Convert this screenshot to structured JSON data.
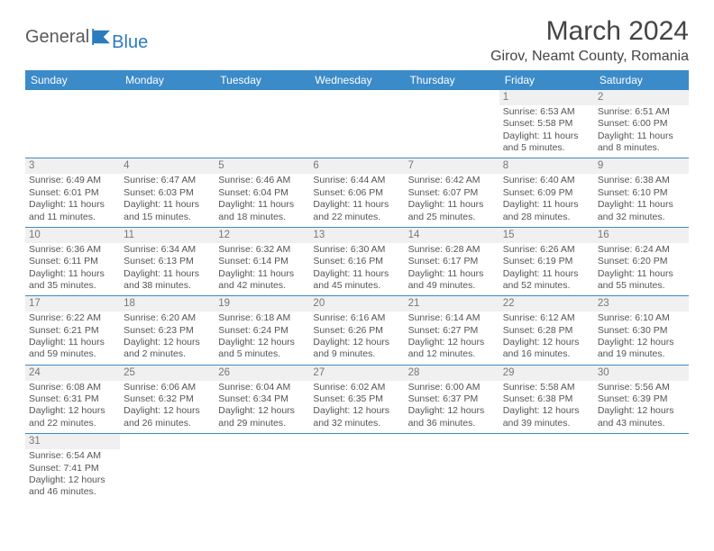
{
  "logo": {
    "text1": "General",
    "text2": "Blue"
  },
  "title": "March 2024",
  "location": "Girov, Neamt County, Romania",
  "colors": {
    "header_bg": "#3b8bc9",
    "header_fg": "#ffffff",
    "daynum_bg": "#f0f0f0",
    "text": "#555555",
    "rule": "#3b8bc9"
  },
  "day_headers": [
    "Sunday",
    "Monday",
    "Tuesday",
    "Wednesday",
    "Thursday",
    "Friday",
    "Saturday"
  ],
  "weeks": [
    [
      null,
      null,
      null,
      null,
      null,
      {
        "n": "1",
        "sr": "6:53 AM",
        "ss": "5:58 PM",
        "dl": "11 hours and 5 minutes."
      },
      {
        "n": "2",
        "sr": "6:51 AM",
        "ss": "6:00 PM",
        "dl": "11 hours and 8 minutes."
      }
    ],
    [
      {
        "n": "3",
        "sr": "6:49 AM",
        "ss": "6:01 PM",
        "dl": "11 hours and 11 minutes."
      },
      {
        "n": "4",
        "sr": "6:47 AM",
        "ss": "6:03 PM",
        "dl": "11 hours and 15 minutes."
      },
      {
        "n": "5",
        "sr": "6:46 AM",
        "ss": "6:04 PM",
        "dl": "11 hours and 18 minutes."
      },
      {
        "n": "6",
        "sr": "6:44 AM",
        "ss": "6:06 PM",
        "dl": "11 hours and 22 minutes."
      },
      {
        "n": "7",
        "sr": "6:42 AM",
        "ss": "6:07 PM",
        "dl": "11 hours and 25 minutes."
      },
      {
        "n": "8",
        "sr": "6:40 AM",
        "ss": "6:09 PM",
        "dl": "11 hours and 28 minutes."
      },
      {
        "n": "9",
        "sr": "6:38 AM",
        "ss": "6:10 PM",
        "dl": "11 hours and 32 minutes."
      }
    ],
    [
      {
        "n": "10",
        "sr": "6:36 AM",
        "ss": "6:11 PM",
        "dl": "11 hours and 35 minutes."
      },
      {
        "n": "11",
        "sr": "6:34 AM",
        "ss": "6:13 PM",
        "dl": "11 hours and 38 minutes."
      },
      {
        "n": "12",
        "sr": "6:32 AM",
        "ss": "6:14 PM",
        "dl": "11 hours and 42 minutes."
      },
      {
        "n": "13",
        "sr": "6:30 AM",
        "ss": "6:16 PM",
        "dl": "11 hours and 45 minutes."
      },
      {
        "n": "14",
        "sr": "6:28 AM",
        "ss": "6:17 PM",
        "dl": "11 hours and 49 minutes."
      },
      {
        "n": "15",
        "sr": "6:26 AM",
        "ss": "6:19 PM",
        "dl": "11 hours and 52 minutes."
      },
      {
        "n": "16",
        "sr": "6:24 AM",
        "ss": "6:20 PM",
        "dl": "11 hours and 55 minutes."
      }
    ],
    [
      {
        "n": "17",
        "sr": "6:22 AM",
        "ss": "6:21 PM",
        "dl": "11 hours and 59 minutes."
      },
      {
        "n": "18",
        "sr": "6:20 AM",
        "ss": "6:23 PM",
        "dl": "12 hours and 2 minutes."
      },
      {
        "n": "19",
        "sr": "6:18 AM",
        "ss": "6:24 PM",
        "dl": "12 hours and 5 minutes."
      },
      {
        "n": "20",
        "sr": "6:16 AM",
        "ss": "6:26 PM",
        "dl": "12 hours and 9 minutes."
      },
      {
        "n": "21",
        "sr": "6:14 AM",
        "ss": "6:27 PM",
        "dl": "12 hours and 12 minutes."
      },
      {
        "n": "22",
        "sr": "6:12 AM",
        "ss": "6:28 PM",
        "dl": "12 hours and 16 minutes."
      },
      {
        "n": "23",
        "sr": "6:10 AM",
        "ss": "6:30 PM",
        "dl": "12 hours and 19 minutes."
      }
    ],
    [
      {
        "n": "24",
        "sr": "6:08 AM",
        "ss": "6:31 PM",
        "dl": "12 hours and 22 minutes."
      },
      {
        "n": "25",
        "sr": "6:06 AM",
        "ss": "6:32 PM",
        "dl": "12 hours and 26 minutes."
      },
      {
        "n": "26",
        "sr": "6:04 AM",
        "ss": "6:34 PM",
        "dl": "12 hours and 29 minutes."
      },
      {
        "n": "27",
        "sr": "6:02 AM",
        "ss": "6:35 PM",
        "dl": "12 hours and 32 minutes."
      },
      {
        "n": "28",
        "sr": "6:00 AM",
        "ss": "6:37 PM",
        "dl": "12 hours and 36 minutes."
      },
      {
        "n": "29",
        "sr": "5:58 AM",
        "ss": "6:38 PM",
        "dl": "12 hours and 39 minutes."
      },
      {
        "n": "30",
        "sr": "5:56 AM",
        "ss": "6:39 PM",
        "dl": "12 hours and 43 minutes."
      }
    ],
    [
      {
        "n": "31",
        "sr": "6:54 AM",
        "ss": "7:41 PM",
        "dl": "12 hours and 46 minutes."
      },
      null,
      null,
      null,
      null,
      null,
      null
    ]
  ],
  "labels": {
    "sunrise": "Sunrise:",
    "sunset": "Sunset:",
    "daylight": "Daylight:"
  }
}
